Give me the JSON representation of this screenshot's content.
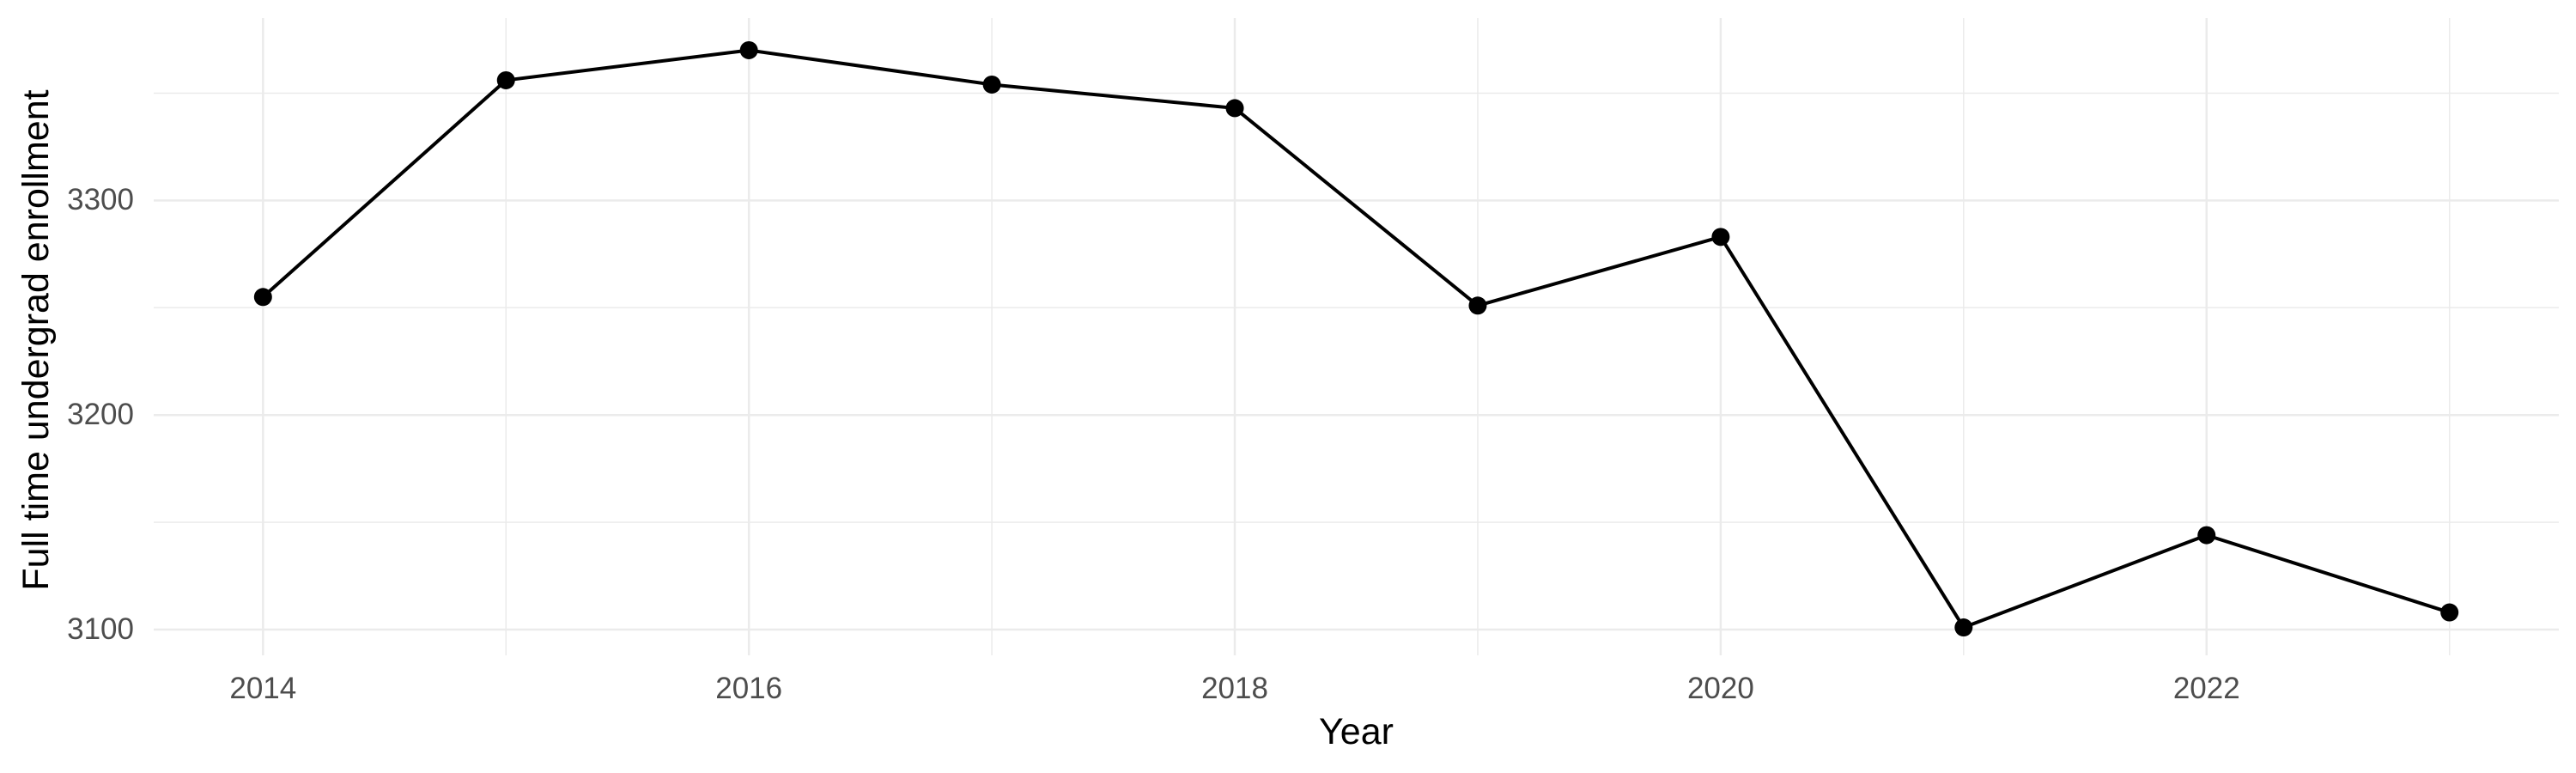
{
  "chart_data": {
    "type": "line",
    "title": "",
    "xlabel": "Year",
    "ylabel": "Full time undergrad enrollment",
    "x": [
      2014,
      2015,
      2016,
      2017,
      2018,
      2019,
      2020,
      2021,
      2022,
      2023
    ],
    "series": [
      {
        "name": "Full time undergrad enrollment",
        "values": [
          3255,
          3356,
          3370,
          3354,
          3343,
          3251,
          3283,
          3101,
          3144,
          3108
        ]
      }
    ],
    "xlim": [
      2013.55,
      2023.45
    ],
    "ylim": [
      3088,
      3385
    ],
    "x_major_ticks": [
      2014,
      2016,
      2018,
      2020,
      2022
    ],
    "x_tick_labels": [
      "2014",
      "2016",
      "2018",
      "2020",
      "2022"
    ],
    "x_minor_ticks": [
      2015,
      2017,
      2019,
      2021,
      2023
    ],
    "y_major_ticks": [
      3100,
      3200,
      3300
    ],
    "y_tick_labels": [
      "3100",
      "3200",
      "3300"
    ],
    "y_minor_ticks": [
      3150,
      3250,
      3350
    ],
    "grid": true,
    "legend_position": "none",
    "marker": "point",
    "style": {
      "line_color": "#000000",
      "point_color": "#000000",
      "grid_color": "#EBEBEB",
      "tick_label_color": "#4D4D4D",
      "axis_title_color": "#000000",
      "background": "#FFFFFF",
      "line_width": 4,
      "point_radius": 10.5,
      "major_grid_width": 2.5,
      "minor_grid_width": 1.5
    }
  }
}
